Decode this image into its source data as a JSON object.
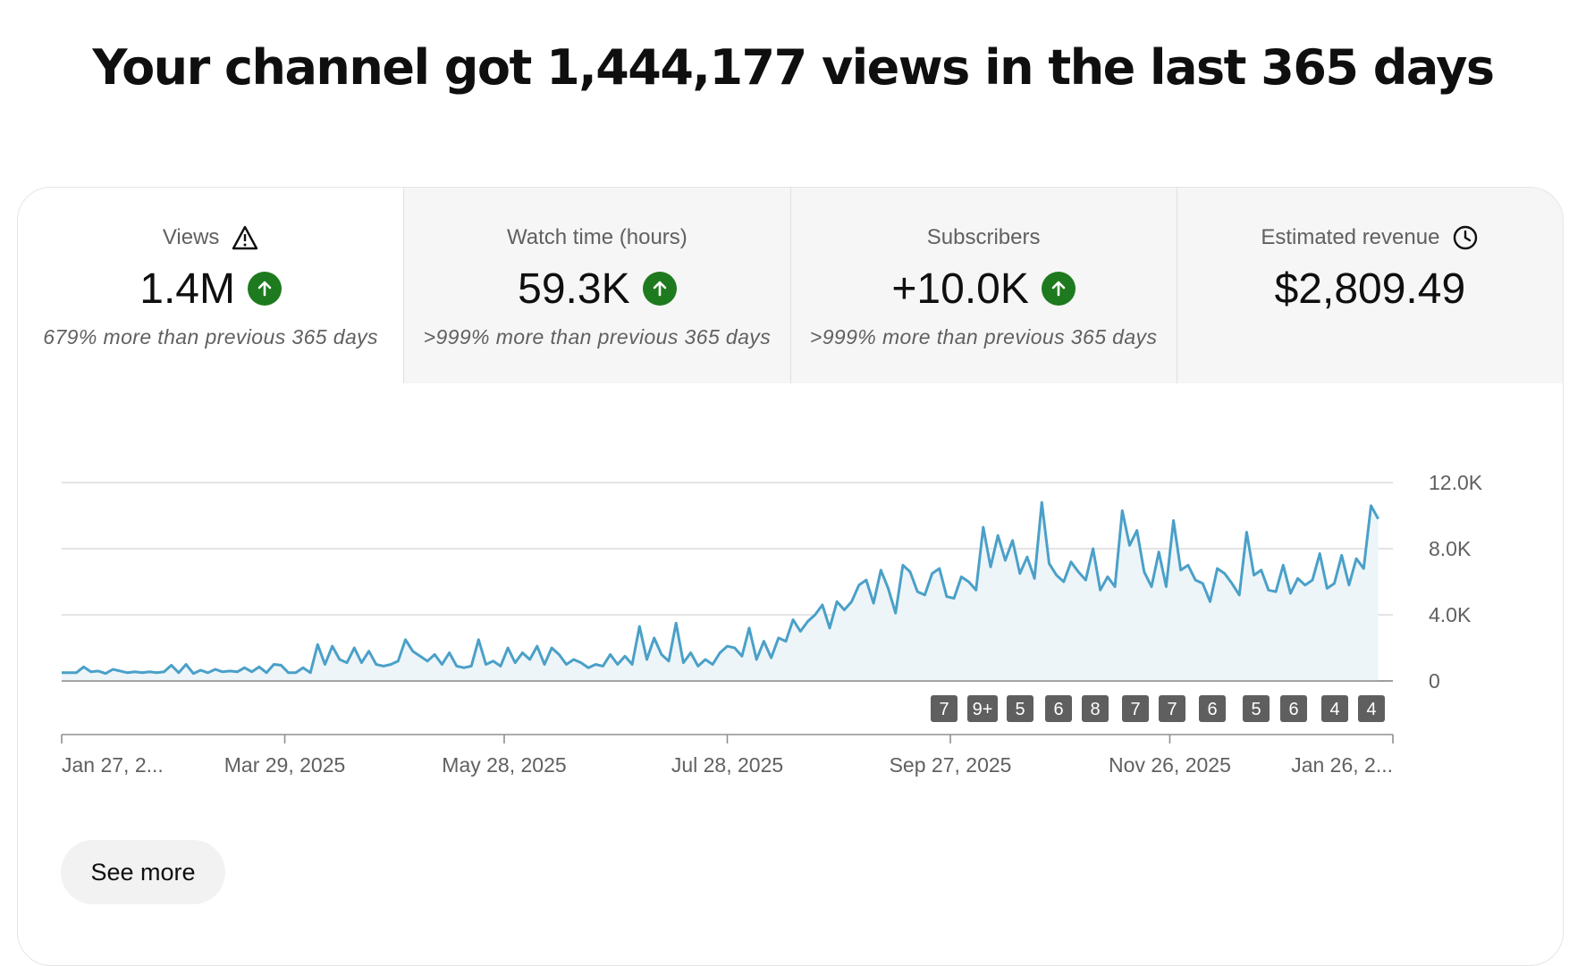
{
  "headline": "Your channel got 1,444,177 views in the last 365 days",
  "tabs": [
    {
      "title": "Views",
      "value": "1.4M",
      "note": "679% more than previous 365 days",
      "title_icon": "warning-icon",
      "trend_icon": "arrow-up-icon"
    },
    {
      "title": "Watch time (hours)",
      "value": "59.3K",
      "note": ">999% more than previous 365 days",
      "trend_icon": "arrow-up-icon"
    },
    {
      "title": "Subscribers",
      "value": "+10.0K",
      "note": ">999% more than previous 365 days",
      "trend_icon": "arrow-up-icon"
    },
    {
      "title": "Estimated revenue",
      "value": "$2,809.49",
      "note": "",
      "title_icon": "clock-icon"
    }
  ],
  "colors": {
    "line": "#4aa0c8",
    "area": "#edf5f9",
    "trend_up": "#1e7a1e",
    "badge": "#5f5f5f"
  },
  "chart_data": {
    "type": "area",
    "x_start": "Jan 27, 2025",
    "x_end": "Jan 26, 2026",
    "ylim": [
      0,
      12000
    ],
    "y_ticks": [
      "0",
      "4.0K",
      "8.0K",
      "12.0K"
    ],
    "x_tick_labels": [
      "Jan 27, 2...",
      "Mar 29, 2025",
      "May 28, 2025",
      "Jul 28, 2025",
      "Sep 27, 2025",
      "Nov 26, 2025",
      "Jan 26, 2..."
    ],
    "series_step_days": 2,
    "values": [
      500,
      500,
      500,
      850,
      550,
      600,
      450,
      700,
      600,
      500,
      550,
      500,
      550,
      500,
      550,
      950,
      500,
      1000,
      450,
      650,
      500,
      700,
      550,
      600,
      550,
      800,
      550,
      850,
      500,
      1000,
      950,
      500,
      500,
      800,
      500,
      2200,
      1000,
      2100,
      1300,
      1100,
      2000,
      1100,
      1800,
      1000,
      900,
      1000,
      1200,
      2500,
      1800,
      1500,
      1200,
      1600,
      1000,
      1700,
      900,
      800,
      900,
      2500,
      1000,
      1200,
      900,
      2000,
      1100,
      1700,
      1300,
      2100,
      1000,
      2000,
      1600,
      1000,
      1300,
      1100,
      800,
      1000,
      900,
      1600,
      1000,
      1500,
      1000,
      3300,
      1300,
      2600,
      1600,
      1200,
      3500,
      1100,
      1700,
      900,
      1300,
      1000,
      1700,
      2100,
      2000,
      1500,
      3200,
      1300,
      2400,
      1400,
      2600,
      2400,
      3700,
      3000,
      3600,
      4000,
      4600,
      3200,
      4800,
      4300,
      4800,
      5800,
      6100,
      4700,
      6700,
      5600,
      4100,
      7000,
      6600,
      5400,
      5200,
      6500,
      6800,
      5100,
      5000,
      6300,
      6000,
      5500,
      9300,
      6900,
      8800,
      7300,
      8500,
      6500,
      7500,
      6200,
      10800,
      7100,
      6400,
      6000,
      7200,
      6600,
      6100,
      8000,
      5500,
      6300,
      5700,
      10300,
      8200,
      9100,
      6600,
      5700,
      7800,
      5700,
      9700,
      6700,
      7000,
      6100,
      5900,
      4800,
      6800,
      6500,
      5900,
      5200,
      9000,
      6400,
      6700,
      5500,
      5400,
      7000,
      5300,
      6200,
      5800,
      6100,
      7700,
      5600,
      5900,
      7600,
      5800,
      7400,
      6800,
      10600,
      9800
    ]
  },
  "badges": [
    "7",
    "9+",
    "5",
    "6",
    "8",
    "7",
    "7",
    "6",
    "5",
    "6",
    "4",
    "4"
  ],
  "see_more_label": "See more"
}
